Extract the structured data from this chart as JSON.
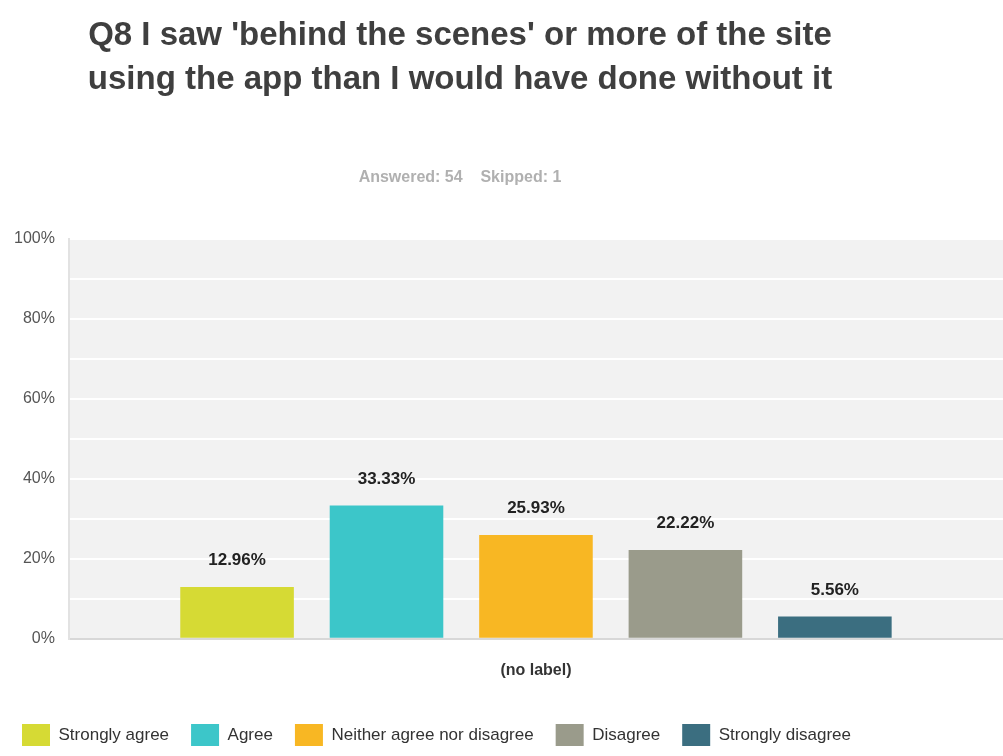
{
  "chart_data": {
    "type": "bar",
    "title": "Q8 I saw 'behind the scenes' or more of the site using the app than I would have done without it",
    "subtitle": "Answered: 54    Skipped: 1",
    "categories": [
      "(no label)"
    ],
    "series": [
      {
        "name": "Strongly agree",
        "color": "#d6da34",
        "values": [
          12.96
        ]
      },
      {
        "name": "Agree",
        "color": "#3cc6c9",
        "values": [
          33.33
        ]
      },
      {
        "name": "Neither agree nor disagree",
        "color": "#f8b723",
        "values": [
          25.93
        ]
      },
      {
        "name": "Disagree",
        "color": "#9a9b8b",
        "values": [
          22.22
        ]
      },
      {
        "name": "Strongly disagree",
        "color": "#3b6e80",
        "values": [
          5.56
        ]
      }
    ],
    "ylim": [
      0,
      100
    ],
    "yticks": [
      {
        "value": 0,
        "label": "0%"
      },
      {
        "value": 10,
        "label": null
      },
      {
        "value": 20,
        "label": "20%"
      },
      {
        "value": 30,
        "label": null
      },
      {
        "value": 40,
        "label": "40%"
      },
      {
        "value": 50,
        "label": null
      },
      {
        "value": 60,
        "label": "60%"
      },
      {
        "value": 70,
        "label": null
      },
      {
        "value": 80,
        "label": "80%"
      },
      {
        "value": 90,
        "label": null
      },
      {
        "value": 100,
        "label": "100%"
      }
    ],
    "value_labels": [
      "12.96%",
      "33.33%",
      "25.93%",
      "22.22%",
      "5.56%"
    ],
    "grid": "y",
    "legend": "bottom"
  }
}
